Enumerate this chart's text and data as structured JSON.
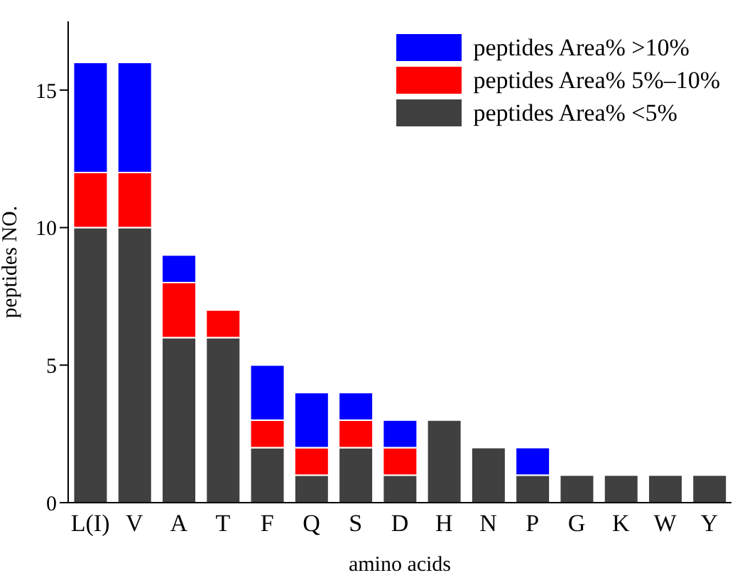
{
  "chart_data": {
    "type": "bar",
    "stacked": true,
    "xlabel": "amino acids",
    "ylabel": "peptides NO.",
    "categories": [
      "L(I)",
      "V",
      "A",
      "T",
      "F",
      "Q",
      "S",
      "D",
      "H",
      "N",
      "P",
      "G",
      "K",
      "W",
      "Y"
    ],
    "series": [
      {
        "name": "peptides Area% <5%",
        "color": "#404040",
        "values": [
          10,
          10,
          6,
          6,
          2,
          1,
          2,
          1,
          3,
          2,
          1,
          1,
          1,
          1,
          1
        ]
      },
      {
        "name": "peptides Area% 5%–10%",
        "color": "#ff0000",
        "values": [
          2,
          2,
          2,
          1,
          1,
          1,
          1,
          1,
          0,
          0,
          0,
          0,
          0,
          0,
          0
        ]
      },
      {
        "name": "peptides Area% >10%",
        "color": "#0000ff",
        "values": [
          4,
          4,
          1,
          0,
          2,
          2,
          1,
          1,
          0,
          0,
          1,
          0,
          0,
          0,
          0
        ]
      }
    ],
    "ylim": [
      0,
      17.5
    ],
    "yticks": [
      0,
      5,
      10,
      15
    ],
    "grid": false,
    "legend": "top right"
  }
}
